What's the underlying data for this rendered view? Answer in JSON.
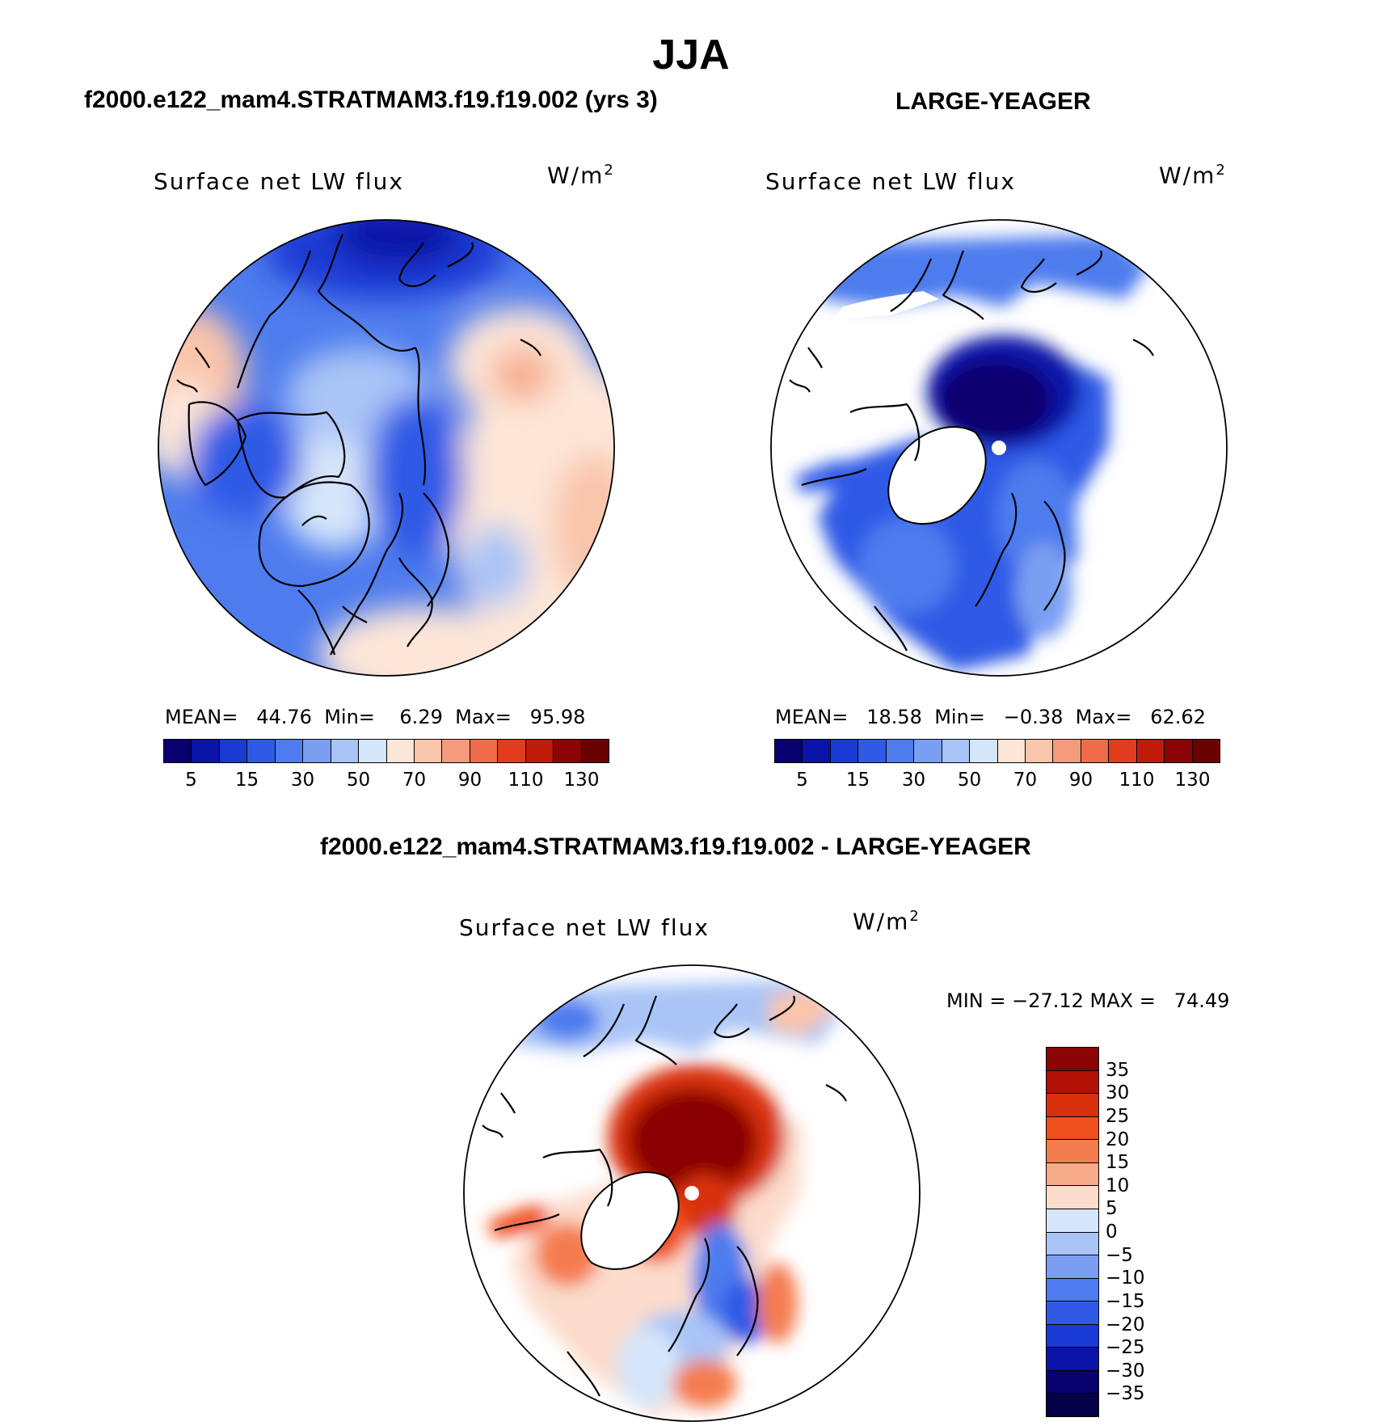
{
  "figure": {
    "season": "JJA",
    "case_a": "f2000.e122_mam4.STRATMAM3.f19.f19.002 (yrs 3)",
    "case_b": "LARGE-YEAGER",
    "diff_title": "f2000.e122_mam4.STRATMAM3.f19.f19.002 - LARGE-YEAGER"
  },
  "panels": [
    {
      "variable": "Surface net LW flux",
      "units": "W/m",
      "units_exp": "2",
      "stats": "MEAN=   44.76  Min=    6.29  Max=   95.98"
    },
    {
      "variable": "Surface net LW flux",
      "units": "W/m",
      "units_exp": "2",
      "stats": "MEAN=   18.58  Min=   −0.38  Max=   62.62"
    },
    {
      "variable": "Surface net LW flux",
      "units": "W/m",
      "units_exp": "2",
      "stats": "MIN = −27.12 MAX =   74.49"
    }
  ],
  "colorbar_abs": {
    "colors": [
      "#08006e",
      "#0a14a8",
      "#1a3ad4",
      "#2f5ae6",
      "#4e7cee",
      "#7a9ff2",
      "#a9c4f6",
      "#d6e6fa",
      "#fde6d8",
      "#f9c5ab",
      "#f59b7c",
      "#ef6b4a",
      "#e33b1e",
      "#c01a0a",
      "#8a0404",
      "#6b0000"
    ],
    "ticks": [
      "5",
      "15",
      "30",
      "50",
      "70",
      "90",
      "110",
      "130"
    ]
  },
  "colorbar_diff": {
    "colors": [
      "#8a0404",
      "#b21206",
      "#d8300c",
      "#f04f1e",
      "#f47d50",
      "#f7ab88",
      "#fcdccc",
      "#d6e6fa",
      "#a9c4f6",
      "#7a9ff2",
      "#4e7cee",
      "#2f5ae6",
      "#1a3ad4",
      "#0a14a8",
      "#08006e",
      "#05004a"
    ],
    "ticks": [
      "35",
      "30",
      "25",
      "20",
      "15",
      "10",
      "5",
      "0",
      "−5",
      "−10",
      "−15",
      "−20",
      "−25",
      "−30",
      "−35"
    ]
  }
}
